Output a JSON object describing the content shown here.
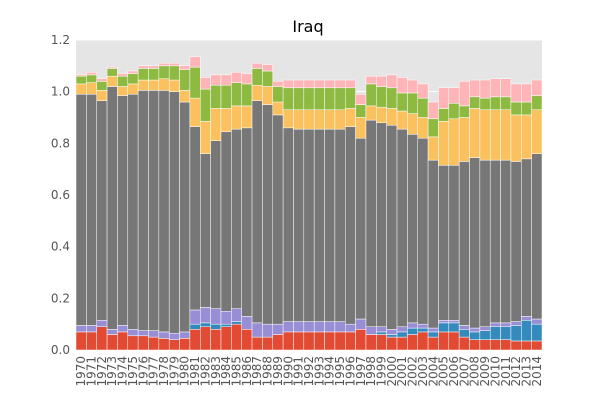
{
  "chart_data": {
    "type": "bar",
    "stacked": true,
    "title": "Iraq",
    "xlabel": "",
    "ylabel": "",
    "ylim": [
      0,
      1.2
    ],
    "yticks": [
      "0.0",
      "0.2",
      "0.4",
      "0.6",
      "0.8",
      "1.0",
      "1.2"
    ],
    "grid": true,
    "legend": "none",
    "background": "#e5e5e5",
    "categories": [
      "1970",
      "1971",
      "1972",
      "1973",
      "1974",
      "1975",
      "1976",
      "1977",
      "1978",
      "1979",
      "1980",
      "1981",
      "1982",
      "1983",
      "1984",
      "1985",
      "1986",
      "1987",
      "1988",
      "1989",
      "1990",
      "1991",
      "1992",
      "1993",
      "1994",
      "1995",
      "1996",
      "1997",
      "1998",
      "1999",
      "2000",
      "2001",
      "2002",
      "2003",
      "2004",
      "2005",
      "2006",
      "2007",
      "2008",
      "2009",
      "2010",
      "2011",
      "2012",
      "2013",
      "2014"
    ],
    "series": [
      {
        "color": "#e24a33",
        "values": [
          0.07,
          0.07,
          0.09,
          0.06,
          0.07,
          0.055,
          0.055,
          0.05,
          0.045,
          0.04,
          0.045,
          0.08,
          0.09,
          0.08,
          0.09,
          0.1,
          0.08,
          0.05,
          0.05,
          0.06,
          0.07,
          0.07,
          0.07,
          0.07,
          0.07,
          0.07,
          0.07,
          0.08,
          0.06,
          0.06,
          0.05,
          0.05,
          0.06,
          0.07,
          0.05,
          0.07,
          0.07,
          0.05,
          0.04,
          0.04,
          0.04,
          0.04,
          0.035,
          0.035,
          0.035
        ]
      },
      {
        "color": "#348abd",
        "values": [
          0.0,
          0.0,
          0.0,
          0.0,
          0.0,
          0.0,
          0.0,
          0.0,
          0.0,
          0.0,
          0.0,
          0.02,
          0.015,
          0.02,
          0.01,
          0.01,
          0.0,
          0.0,
          0.0,
          0.0,
          0.0,
          0.0,
          0.0,
          0.0,
          0.0,
          0.0,
          0.0,
          0.0,
          0.0,
          0.01,
          0.01,
          0.02,
          0.025,
          0.015,
          0.02,
          0.035,
          0.035,
          0.03,
          0.03,
          0.035,
          0.05,
          0.05,
          0.06,
          0.08,
          0.065
        ]
      },
      {
        "color": "#988ed5",
        "values": [
          0.025,
          0.025,
          0.025,
          0.02,
          0.025,
          0.025,
          0.02,
          0.025,
          0.025,
          0.025,
          0.025,
          0.055,
          0.06,
          0.06,
          0.05,
          0.05,
          0.05,
          0.055,
          0.05,
          0.04,
          0.04,
          0.04,
          0.04,
          0.04,
          0.04,
          0.04,
          0.03,
          0.04,
          0.03,
          0.02,
          0.02,
          0.02,
          0.02,
          0.015,
          0.015,
          0.01,
          0.01,
          0.015,
          0.015,
          0.015,
          0.015,
          0.015,
          0.015,
          0.015,
          0.02
        ]
      },
      {
        "color": "#777777",
        "values": [
          0.895,
          0.895,
          0.85,
          0.94,
          0.89,
          0.91,
          0.93,
          0.93,
          0.935,
          0.935,
          0.89,
          0.71,
          0.595,
          0.65,
          0.695,
          0.695,
          0.73,
          0.86,
          0.85,
          0.81,
          0.75,
          0.745,
          0.745,
          0.745,
          0.745,
          0.745,
          0.765,
          0.7,
          0.8,
          0.79,
          0.79,
          0.765,
          0.73,
          0.72,
          0.65,
          0.6,
          0.6,
          0.635,
          0.66,
          0.645,
          0.63,
          0.63,
          0.62,
          0.61,
          0.64
        ]
      },
      {
        "color": "#fbc15e",
        "values": [
          0.04,
          0.045,
          0.04,
          0.04,
          0.035,
          0.04,
          0.04,
          0.04,
          0.045,
          0.045,
          0.045,
          0.11,
          0.125,
          0.125,
          0.09,
          0.09,
          0.085,
          0.06,
          0.07,
          0.05,
          0.07,
          0.075,
          0.075,
          0.075,
          0.075,
          0.075,
          0.07,
          0.08,
          0.055,
          0.06,
          0.065,
          0.07,
          0.08,
          0.08,
          0.09,
          0.17,
          0.18,
          0.17,
          0.19,
          0.195,
          0.195,
          0.195,
          0.18,
          0.17,
          0.17
        ]
      },
      {
        "color": "#8eba42",
        "values": [
          0.03,
          0.03,
          0.035,
          0.03,
          0.04,
          0.04,
          0.045,
          0.045,
          0.05,
          0.055,
          0.08,
          0.12,
          0.125,
          0.09,
          0.09,
          0.09,
          0.085,
          0.065,
          0.06,
          0.06,
          0.085,
          0.085,
          0.085,
          0.085,
          0.085,
          0.085,
          0.08,
          0.05,
          0.085,
          0.08,
          0.08,
          0.07,
          0.08,
          0.075,
          0.07,
          0.05,
          0.06,
          0.045,
          0.045,
          0.045,
          0.05,
          0.05,
          0.05,
          0.05,
          0.055
        ]
      },
      {
        "color": "#ffb5b8",
        "values": [
          0.005,
          0.01,
          0.01,
          0.005,
          0.01,
          0.01,
          0.01,
          0.01,
          0.01,
          0.01,
          0.015,
          0.04,
          0.045,
          0.04,
          0.04,
          0.04,
          0.04,
          0.02,
          0.025,
          0.02,
          0.03,
          0.03,
          0.03,
          0.03,
          0.03,
          0.03,
          0.03,
          0.04,
          0.03,
          0.04,
          0.05,
          0.06,
          0.05,
          0.055,
          0.065,
          0.08,
          0.06,
          0.095,
          0.065,
          0.07,
          0.07,
          0.07,
          0.07,
          0.07,
          0.06
        ]
      }
    ]
  }
}
